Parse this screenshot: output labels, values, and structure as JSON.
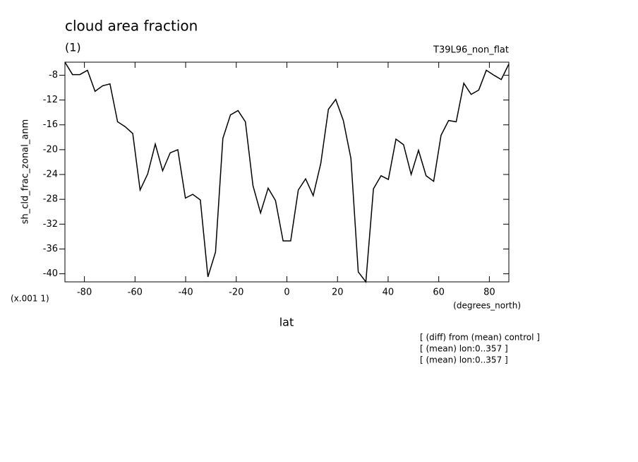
{
  "chart_data": {
    "type": "line",
    "title": "cloud area fraction",
    "subtitle": "(1)",
    "run_label": "T39L96_non_flat",
    "y_label": "sh_cld_frac_zonal_anm",
    "y_unit": "(x.001 1)",
    "x_unit": "(degrees_north)",
    "x_label": "lat",
    "notes": [
      "[ (diff) from (mean) control ]",
      "[ (mean) lon:0..357 ]",
      "[ (mean) lon:0..357 ]"
    ],
    "x": [
      -87.7,
      -84.7,
      -81.8,
      -78.8,
      -75.8,
      -72.8,
      -69.9,
      -66.9,
      -63.9,
      -60.9,
      -58.0,
      -55.0,
      -52.0,
      -49.1,
      -46.1,
      -43.1,
      -40.1,
      -37.2,
      -34.2,
      -31.2,
      -28.2,
      -25.3,
      -22.3,
      -19.3,
      -16.4,
      -13.4,
      -10.4,
      -7.4,
      -4.5,
      -1.5,
      1.5,
      4.5,
      7.4,
      10.4,
      13.4,
      16.4,
      19.3,
      22.3,
      25.3,
      28.2,
      31.2,
      34.2,
      37.2,
      40.1,
      43.1,
      46.1,
      49.1,
      52.0,
      55.0,
      58.0,
      60.9,
      63.9,
      66.9,
      69.9,
      72.8,
      75.8,
      78.8,
      81.8,
      84.7,
      87.7
    ],
    "values": [
      -5.9,
      -7.9,
      -7.9,
      -7.2,
      -10.6,
      -9.7,
      -9.4,
      -15.5,
      -16.3,
      -17.4,
      -26.5,
      -23.9,
      -19.1,
      -23.4,
      -20.5,
      -20.0,
      -27.8,
      -27.2,
      -28.1,
      -40.5,
      -36.5,
      -18.2,
      -14.4,
      -13.7,
      -15.5,
      -25.8,
      -30.2,
      -26.2,
      -28.2,
      -34.7,
      -34.7,
      -26.5,
      -24.7,
      -27.4,
      -22.2,
      -13.5,
      -11.9,
      -15.3,
      -21.4,
      -39.7,
      -41.3,
      -26.3,
      -24.2,
      -24.8,
      -18.3,
      -19.2,
      -24.0,
      -20.1,
      -24.2,
      -25.1,
      -17.7,
      -15.3,
      -15.5,
      -9.3,
      -11.1,
      -10.4,
      -7.2,
      -8.0,
      -8.7,
      -6.2
    ],
    "color": "#000000",
    "xlim": [
      -87.7,
      87.7
    ],
    "ylim": [
      -41.3,
      -5.9
    ],
    "xticks": [
      -80,
      -60,
      -40,
      -20,
      0,
      20,
      40,
      60,
      80
    ],
    "yticks": [
      -8,
      -12,
      -16,
      -20,
      -24,
      -28,
      -32,
      -36,
      -40
    ]
  }
}
